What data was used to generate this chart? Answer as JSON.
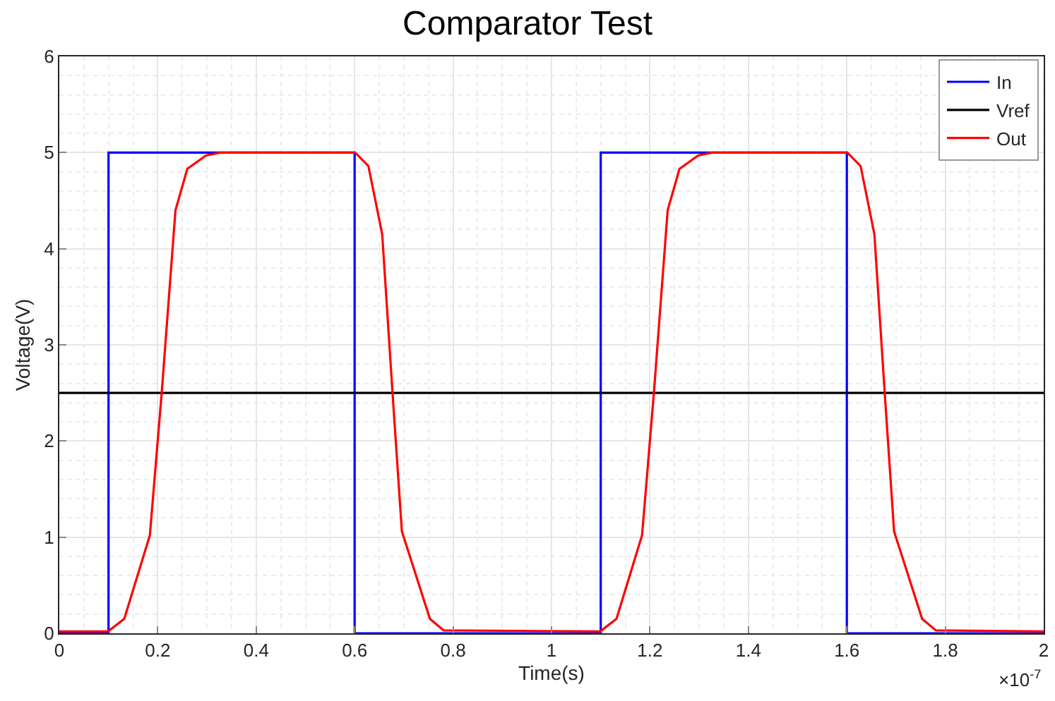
{
  "chart_data": {
    "type": "line",
    "title": "Comparator Test",
    "xlabel": "Time(s)",
    "ylabel": "Voltage(V)",
    "annotations": [
      "×10$^{-7}$"
    ],
    "xlim": [
      0,
      2
    ],
    "xticks": [
      0,
      0.2,
      0.4,
      0.6,
      0.8,
      1,
      1.2,
      1.4,
      1.6,
      1.8,
      2
    ],
    "ylim": [
      0,
      6
    ],
    "yticks": [
      0,
      1,
      2,
      3,
      4,
      5,
      6
    ],
    "grid": true,
    "legend": "top right",
    "line_style": "solid",
    "marker": "none",
    "series": [
      {
        "name": "In",
        "color": "#0000ff",
        "x": [
          0,
          0.1,
          0.1,
          0.6,
          0.6,
          1.1,
          1.1,
          1.6,
          1.6,
          2
        ],
        "values": [
          0,
          0,
          5,
          5,
          0,
          0,
          5,
          5,
          0,
          0
        ]
      },
      {
        "name": "Vref",
        "color": "#000000",
        "x": [
          0,
          2
        ],
        "values": [
          2.5,
          2.5
        ]
      },
      {
        "name": "Out",
        "color": "#ff0000",
        "x": [
          0,
          0.099,
          0.132,
          0.184,
          0.208,
          0.236,
          0.26,
          0.298,
          0.327,
          0.601,
          0.628,
          0.656,
          0.677,
          0.696,
          0.753,
          0.781,
          1.099,
          1.132,
          1.184,
          1.208,
          1.236,
          1.26,
          1.298,
          1.327,
          1.601,
          1.628,
          1.656,
          1.677,
          1.696,
          1.753,
          1.781,
          2
        ],
        "values": [
          0.02,
          0.02,
          0.15,
          1.02,
          2.5,
          4.4,
          4.83,
          4.97,
          5.0,
          5.0,
          4.86,
          4.15,
          2.5,
          1.06,
          0.15,
          0.03,
          0.02,
          0.15,
          1.02,
          2.5,
          4.4,
          4.83,
          4.97,
          5.0,
          5.0,
          4.86,
          4.15,
          2.5,
          1.06,
          0.15,
          0.03,
          0.02
        ]
      }
    ]
  }
}
